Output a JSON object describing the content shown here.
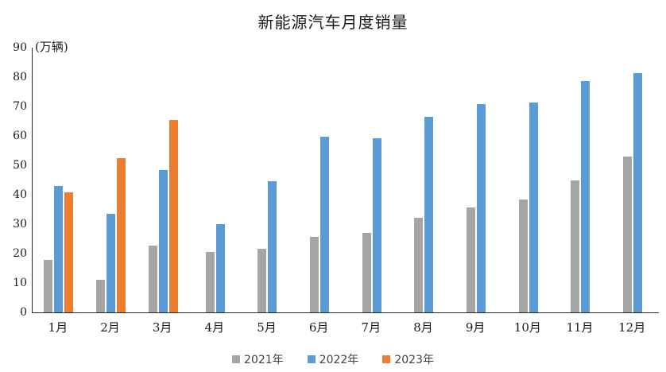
{
  "title": "新能源汽车月度销量",
  "y_axis_unit": "(万辆)",
  "chart_data": {
    "type": "bar",
    "title": "新能源汽车月度销量",
    "xlabel": "",
    "ylabel": "(万辆)",
    "categories": [
      "1月",
      "2月",
      "3月",
      "4月",
      "5月",
      "6月",
      "7月",
      "8月",
      "9月",
      "10月",
      "11月",
      "12月"
    ],
    "series": [
      {
        "name": "2021年",
        "color": "#A5A5A5",
        "values": [
          17.9,
          11.0,
          22.6,
          20.6,
          21.7,
          25.6,
          27.1,
          32.1,
          35.7,
          38.3,
          45.0,
          53.1
        ]
      },
      {
        "name": "2022年",
        "color": "#5B9BD5",
        "values": [
          43.1,
          33.4,
          48.4,
          29.9,
          44.7,
          59.6,
          59.3,
          66.6,
          70.8,
          71.4,
          78.6,
          81.4
        ]
      },
      {
        "name": "2023年",
        "color": "#ED7D31",
        "values": [
          40.8,
          52.5,
          65.3,
          null,
          null,
          null,
          null,
          null,
          null,
          null,
          null,
          null
        ]
      }
    ],
    "ylim": [
      0,
      90
    ],
    "ytick_step": 10,
    "grid": false,
    "legend_position": "bottom"
  }
}
